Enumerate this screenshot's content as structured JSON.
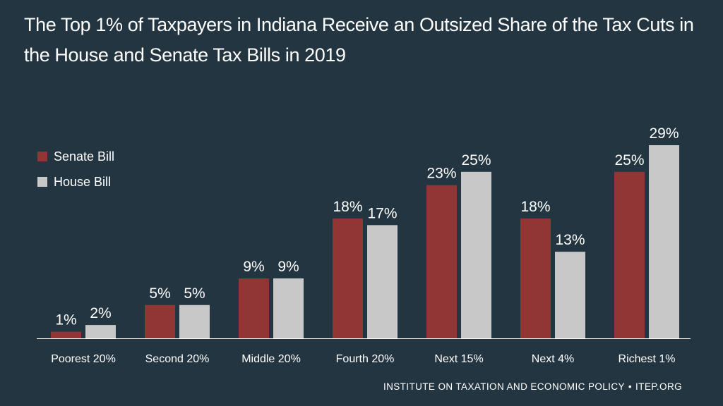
{
  "title_lines": [
    "The Top 1% of Taxpayers in Indiana Receive an Outsized Share of the Tax Cuts in",
    "the House and Senate Tax Bills in 2019"
  ],
  "footer": {
    "org": "INSTITUTE ON TAXATION AND ECONOMIC POLICY",
    "separator": "•",
    "site": "ITEP.ORG"
  },
  "colors": {
    "background": "#233540",
    "senate": "#913535",
    "house": "#c8c8c8",
    "text": "#ffffff"
  },
  "chart_data": {
    "type": "bar",
    "title": "The Top 1% of Taxpayers in Indiana Receive an Outsized Share of the Tax Cuts in the House and Senate Tax Bills in 2019",
    "categories": [
      "Poorest 20%",
      "Second 20%",
      "Middle 20%",
      "Fourth 20%",
      "Next 15%",
      "Next 4%",
      "Richest 1%"
    ],
    "series": [
      {
        "name": "Senate Bill",
        "values": [
          1,
          5,
          9,
          18,
          23,
          18,
          25
        ],
        "labels": [
          "1%",
          "5%",
          "9%",
          "18%",
          "23%",
          "18%",
          "25%"
        ],
        "color": "#913535"
      },
      {
        "name": "House Bill",
        "values": [
          2,
          5,
          9,
          17,
          25,
          13,
          29
        ],
        "labels": [
          "2%",
          "5%",
          "9%",
          "17%",
          "25%",
          "13%",
          "29%"
        ],
        "color": "#c8c8c8"
      }
    ],
    "xlabel": "",
    "ylabel": "",
    "ylim": [
      0,
      29
    ],
    "grid": false,
    "legend": "top-left",
    "value_labels": true
  }
}
